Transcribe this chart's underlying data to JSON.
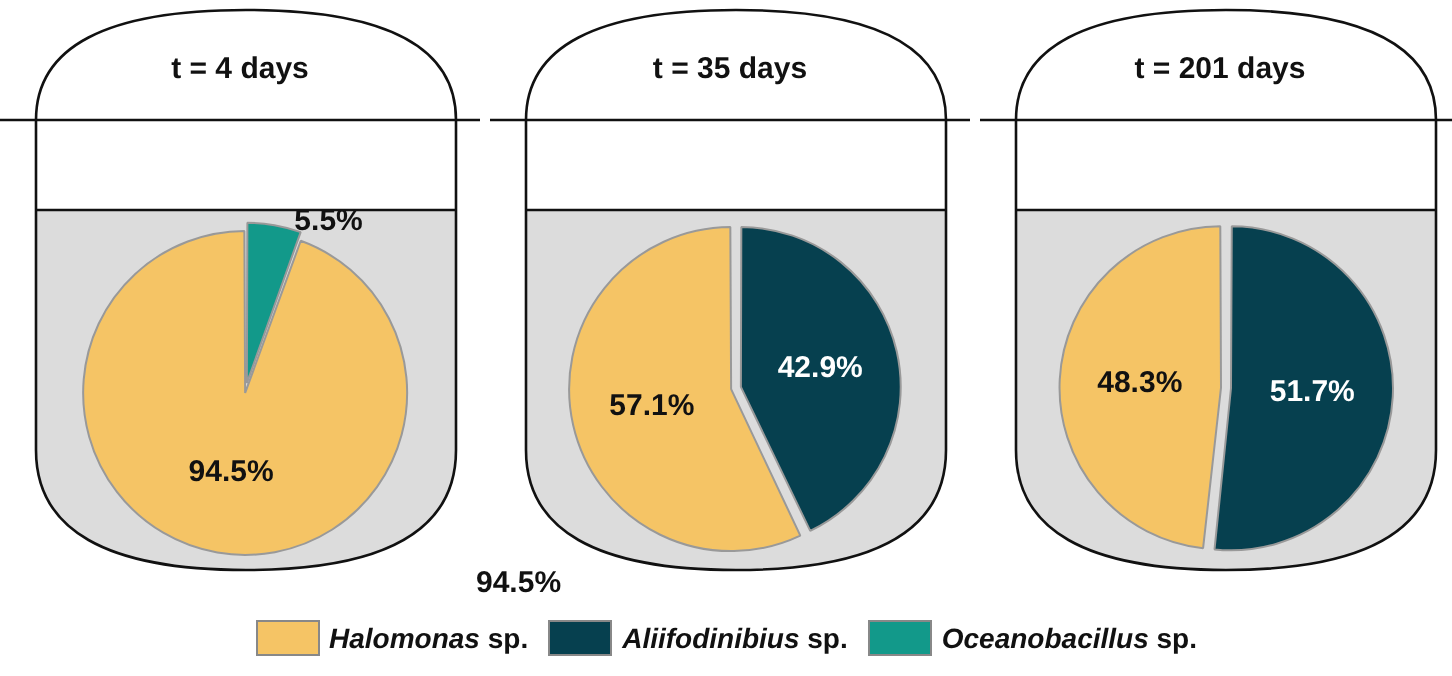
{
  "chart_data": [
    {
      "type": "pie",
      "title": "t = 4 days",
      "categories": [
        "Halomonas sp.",
        "Aliifodinibius sp.",
        "Oceanobacillus sp."
      ],
      "values": [
        94.5,
        0,
        5.5
      ],
      "value_labels": [
        "94.5%",
        null,
        "5.5%"
      ],
      "colors": [
        "#f5c465",
        "#06404f",
        "#12998a"
      ],
      "legend": "bottom",
      "annotations": [
        "94.5%"
      ]
    },
    {
      "type": "pie",
      "title": "t = 35 days",
      "categories": [
        null,
        null
      ],
      "values": [
        57.1,
        42.9
      ],
      "value_labels": [
        "57.1%",
        "42.9%"
      ],
      "colors": [
        "#f5c465",
        "#06404f"
      ]
    },
    {
      "type": "pie",
      "title": "t = 201 days",
      "categories": [
        null,
        null
      ],
      "values": [
        48.3,
        51.7
      ],
      "value_labels": [
        "48.3%",
        "51.7%"
      ],
      "colors": [
        "#f5c465",
        "#06404f"
      ]
    }
  ]
}
